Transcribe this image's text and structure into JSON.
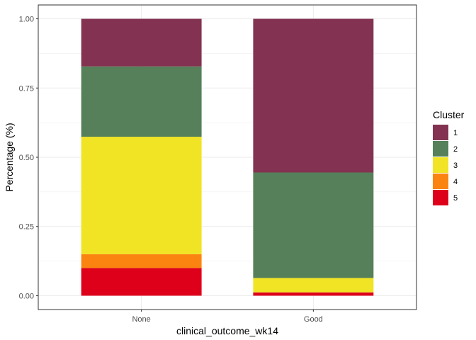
{
  "chart_data": {
    "type": "bar",
    "stacked": true,
    "categories": [
      "None",
      "Good"
    ],
    "series": [
      {
        "name": "1",
        "color": "#833351",
        "values": [
          0.172,
          0.555
        ]
      },
      {
        "name": "2",
        "color": "#55805A",
        "values": [
          0.254,
          0.381
        ]
      },
      {
        "name": "3",
        "color": "#F0E424",
        "values": [
          0.424,
          0.052
        ]
      },
      {
        "name": "4",
        "color": "#FB8410",
        "values": [
          0.05,
          0.0
        ]
      },
      {
        "name": "5",
        "color": "#DE001A",
        "values": [
          0.1,
          0.012
        ]
      }
    ],
    "xlabel": "clinical_outcome_wk14",
    "ylabel": "Percentage (%)",
    "ylim": [
      -0.05,
      1.05
    ],
    "yticks": [
      0.0,
      0.25,
      0.5,
      0.75,
      1.0
    ],
    "ytick_labels": [
      "0.00",
      "0.25",
      "0.50",
      "0.75",
      "1.00"
    ],
    "legend_title": "Cluster",
    "legend_position": "right",
    "grid": true
  }
}
